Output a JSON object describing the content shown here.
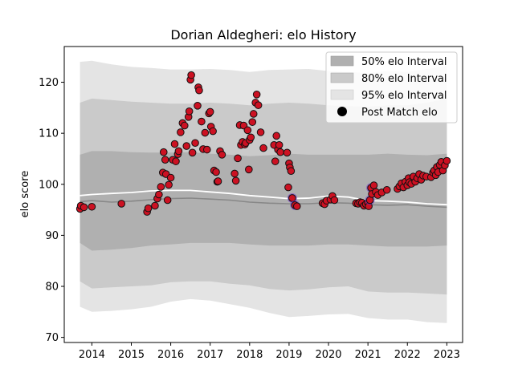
{
  "chart_data": {
    "type": "scatter",
    "title": "Dorian Aldegheri: elo History",
    "xlabel": "",
    "ylabel": "elo score",
    "xlim": [
      2013.3,
      2023.4
    ],
    "ylim": [
      69,
      127
    ],
    "xticks": [
      2014,
      2015,
      2016,
      2017,
      2018,
      2019,
      2020,
      2021,
      2022,
      2023
    ],
    "xtick_labels": [
      "2014",
      "2015",
      "2016",
      "2017",
      "2018",
      "2019",
      "2020",
      "2021",
      "2022",
      "2023"
    ],
    "yticks": [
      70,
      80,
      90,
      100,
      110,
      120
    ],
    "ytick_labels": [
      "70",
      "80",
      "90",
      "100",
      "110",
      "120"
    ],
    "grid": false,
    "legend_position": "top-right",
    "legend": {
      "band50_label": "50% elo Interval",
      "band80_label": "80% elo Interval",
      "band95_label": "95% elo Interval",
      "points_label": "Post Match elo"
    },
    "colors": {
      "band50": "#b0b0b0",
      "band80": "#cacaca",
      "band95": "#e4e4e4",
      "median_line": "#888888",
      "mean_line": "#ffffff",
      "point_fill": "#cc1122",
      "point_edge": "#111111",
      "highlight": "#7733cc"
    },
    "interval_x": [
      2013.7,
      2014.0,
      2014.5,
      2015.0,
      2015.5,
      2016.0,
      2016.5,
      2017.0,
      2017.5,
      2018.0,
      2018.5,
      2019.0,
      2019.5,
      2020.0,
      2020.5,
      2021.0,
      2021.5,
      2022.0,
      2022.5,
      2023.0
    ],
    "band95_upper": [
      124.0,
      124.2,
      123.5,
      123.0,
      122.8,
      122.5,
      122.5,
      122.6,
      122.4,
      122.0,
      122.4,
      122.5,
      122.6,
      122.2,
      122.0,
      121.8,
      122.2,
      122.0,
      122.6,
      123.2
    ],
    "band80_upper": [
      116.0,
      116.8,
      116.5,
      116.2,
      116.0,
      115.8,
      115.8,
      116.0,
      115.8,
      115.5,
      115.8,
      116.0,
      115.8,
      115.5,
      115.3,
      115.2,
      115.5,
      115.5,
      116.0,
      116.8
    ],
    "band50_upper": [
      105.8,
      106.5,
      106.5,
      106.3,
      106.2,
      106.2,
      106.3,
      106.0,
      105.8,
      105.5,
      105.7,
      106.0,
      105.8,
      105.8,
      105.8,
      105.8,
      106.0,
      105.8,
      105.7,
      106.0
    ],
    "band50_lower": [
      88.5,
      87.0,
      87.2,
      87.5,
      88.0,
      88.2,
      88.5,
      88.5,
      88.5,
      88.2,
      88.0,
      88.0,
      88.0,
      88.2,
      88.2,
      88.0,
      87.8,
      87.8,
      87.8,
      88.0
    ],
    "band80_lower": [
      81.0,
      79.6,
      79.8,
      80.0,
      80.2,
      80.8,
      81.0,
      81.0,
      80.5,
      80.2,
      79.5,
      79.2,
      79.4,
      79.8,
      80.0,
      79.0,
      78.8,
      78.8,
      78.6,
      78.4
    ],
    "band95_lower": [
      76.0,
      75.0,
      75.2,
      75.5,
      76.0,
      77.0,
      77.5,
      77.2,
      76.5,
      75.8,
      74.8,
      74.0,
      74.2,
      74.5,
      74.6,
      73.8,
      73.5,
      73.5,
      73.0,
      72.8
    ],
    "median_line": [
      96.6,
      96.8,
      96.5,
      96.7,
      97.0,
      97.2,
      97.3,
      97.1,
      96.9,
      96.5,
      96.3,
      96.2,
      96.2,
      96.4,
      96.3,
      96.0,
      95.9,
      96.0,
      95.7,
      95.5
    ],
    "mean_line": [
      97.8,
      98.0,
      98.2,
      98.4,
      98.7,
      98.8,
      98.8,
      98.5,
      98.2,
      97.8,
      97.5,
      97.2,
      97.3,
      97.7,
      97.5,
      96.8,
      96.7,
      96.5,
      96.2,
      96.0
    ],
    "points": {
      "x": [
        2013.7,
        2013.72,
        2013.8,
        2014.0,
        2014.75,
        2015.4,
        2015.43,
        2015.6,
        2015.66,
        2015.7,
        2015.75,
        2015.8,
        2015.82,
        2015.86,
        2015.88,
        2015.92,
        2015.95,
        2016.0,
        2016.05,
        2016.1,
        2016.13,
        2016.18,
        2016.2,
        2016.25,
        2016.3,
        2016.35,
        2016.4,
        2016.45,
        2016.47,
        2016.5,
        2016.52,
        2016.55,
        2016.62,
        2016.68,
        2016.7,
        2016.72,
        2016.78,
        2016.82,
        2016.87,
        2016.92,
        2016.97,
        2017.0,
        2017.02,
        2017.07,
        2017.1,
        2017.15,
        2017.18,
        2017.2,
        2017.25,
        2017.3,
        2017.62,
        2017.65,
        2017.7,
        2017.75,
        2017.78,
        2017.82,
        2017.85,
        2017.88,
        2017.9,
        2017.95,
        2017.98,
        2018.0,
        2018.03,
        2018.07,
        2018.1,
        2018.15,
        2018.18,
        2018.22,
        2018.28,
        2018.35,
        2018.62,
        2018.65,
        2018.68,
        2018.72,
        2018.75,
        2018.78,
        2018.95,
        2018.98,
        2019.0,
        2019.02,
        2019.05,
        2019.08,
        2019.15,
        2019.2,
        2019.85,
        2019.9,
        2019.95,
        2020.05,
        2020.1,
        2020.15,
        2020.7,
        2020.75,
        2020.8,
        2020.85,
        2020.9,
        2020.95,
        2021.0,
        2021.02,
        2021.05,
        2021.08,
        2021.1,
        2021.15,
        2021.2,
        2021.25,
        2021.35,
        2021.48,
        2021.75,
        2021.8,
        2021.85,
        2021.9,
        2021.95,
        2022.0,
        2022.03,
        2022.05,
        2022.1,
        2022.15,
        2022.2,
        2022.25,
        2022.3,
        2022.35,
        2022.4,
        2022.48,
        2022.6,
        2022.65,
        2022.68,
        2022.72,
        2022.75,
        2022.78,
        2022.82,
        2022.86,
        2022.9,
        2022.95,
        2023.0
      ],
      "y": [
        95.2,
        95.8,
        95.5,
        95.6,
        96.2,
        94.6,
        95.3,
        95.8,
        97.2,
        98.0,
        99.5,
        102.3,
        106.3,
        104.8,
        102.0,
        96.9,
        99.9,
        101.3,
        104.8,
        107.9,
        104.5,
        105.9,
        106.5,
        110.2,
        112.0,
        111.5,
        107.5,
        113.2,
        114.3,
        120.5,
        121.4,
        106.2,
        108.1,
        115.4,
        119.0,
        118.4,
        112.3,
        106.9,
        110.1,
        106.8,
        113.9,
        114.2,
        111.3,
        110.4,
        102.7,
        102.4,
        100.5,
        100.6,
        106.5,
        105.8,
        102.1,
        100.7,
        105.1,
        111.6,
        107.7,
        108.3,
        111.5,
        107.8,
        108.1,
        110.6,
        102.9,
        108.7,
        109.2,
        112.2,
        113.8,
        116.0,
        117.6,
        115.5,
        110.2,
        107.1,
        107.7,
        104.5,
        109.5,
        106.8,
        107.7,
        106.3,
        106.2,
        99.4,
        104.1,
        103.3,
        102.6,
        97.3,
        95.9,
        95.7,
        96.3,
        96.1,
        96.8,
        97.0,
        97.7,
        96.9,
        96.3,
        96.2,
        96.5,
        96.4,
        95.8,
        96.1,
        96.4,
        95.7,
        96.9,
        99.3,
        98.1,
        99.8,
        98.5,
        97.9,
        98.4,
        98.9,
        99.1,
        99.6,
        100.2,
        99.4,
        100.5,
        99.8,
        101.2,
        100.4,
        100.1,
        101.5,
        100.5,
        101.2,
        102.0,
        100.9,
        101.7,
        101.5,
        101.4,
        102.3,
        102.7,
        101.8,
        103.4,
        102.4,
        103.8,
        104.4,
        102.7,
        103.7,
        104.6
      ],
      "highlighted_index": [
        81,
        82,
        98,
        99
      ]
    }
  }
}
